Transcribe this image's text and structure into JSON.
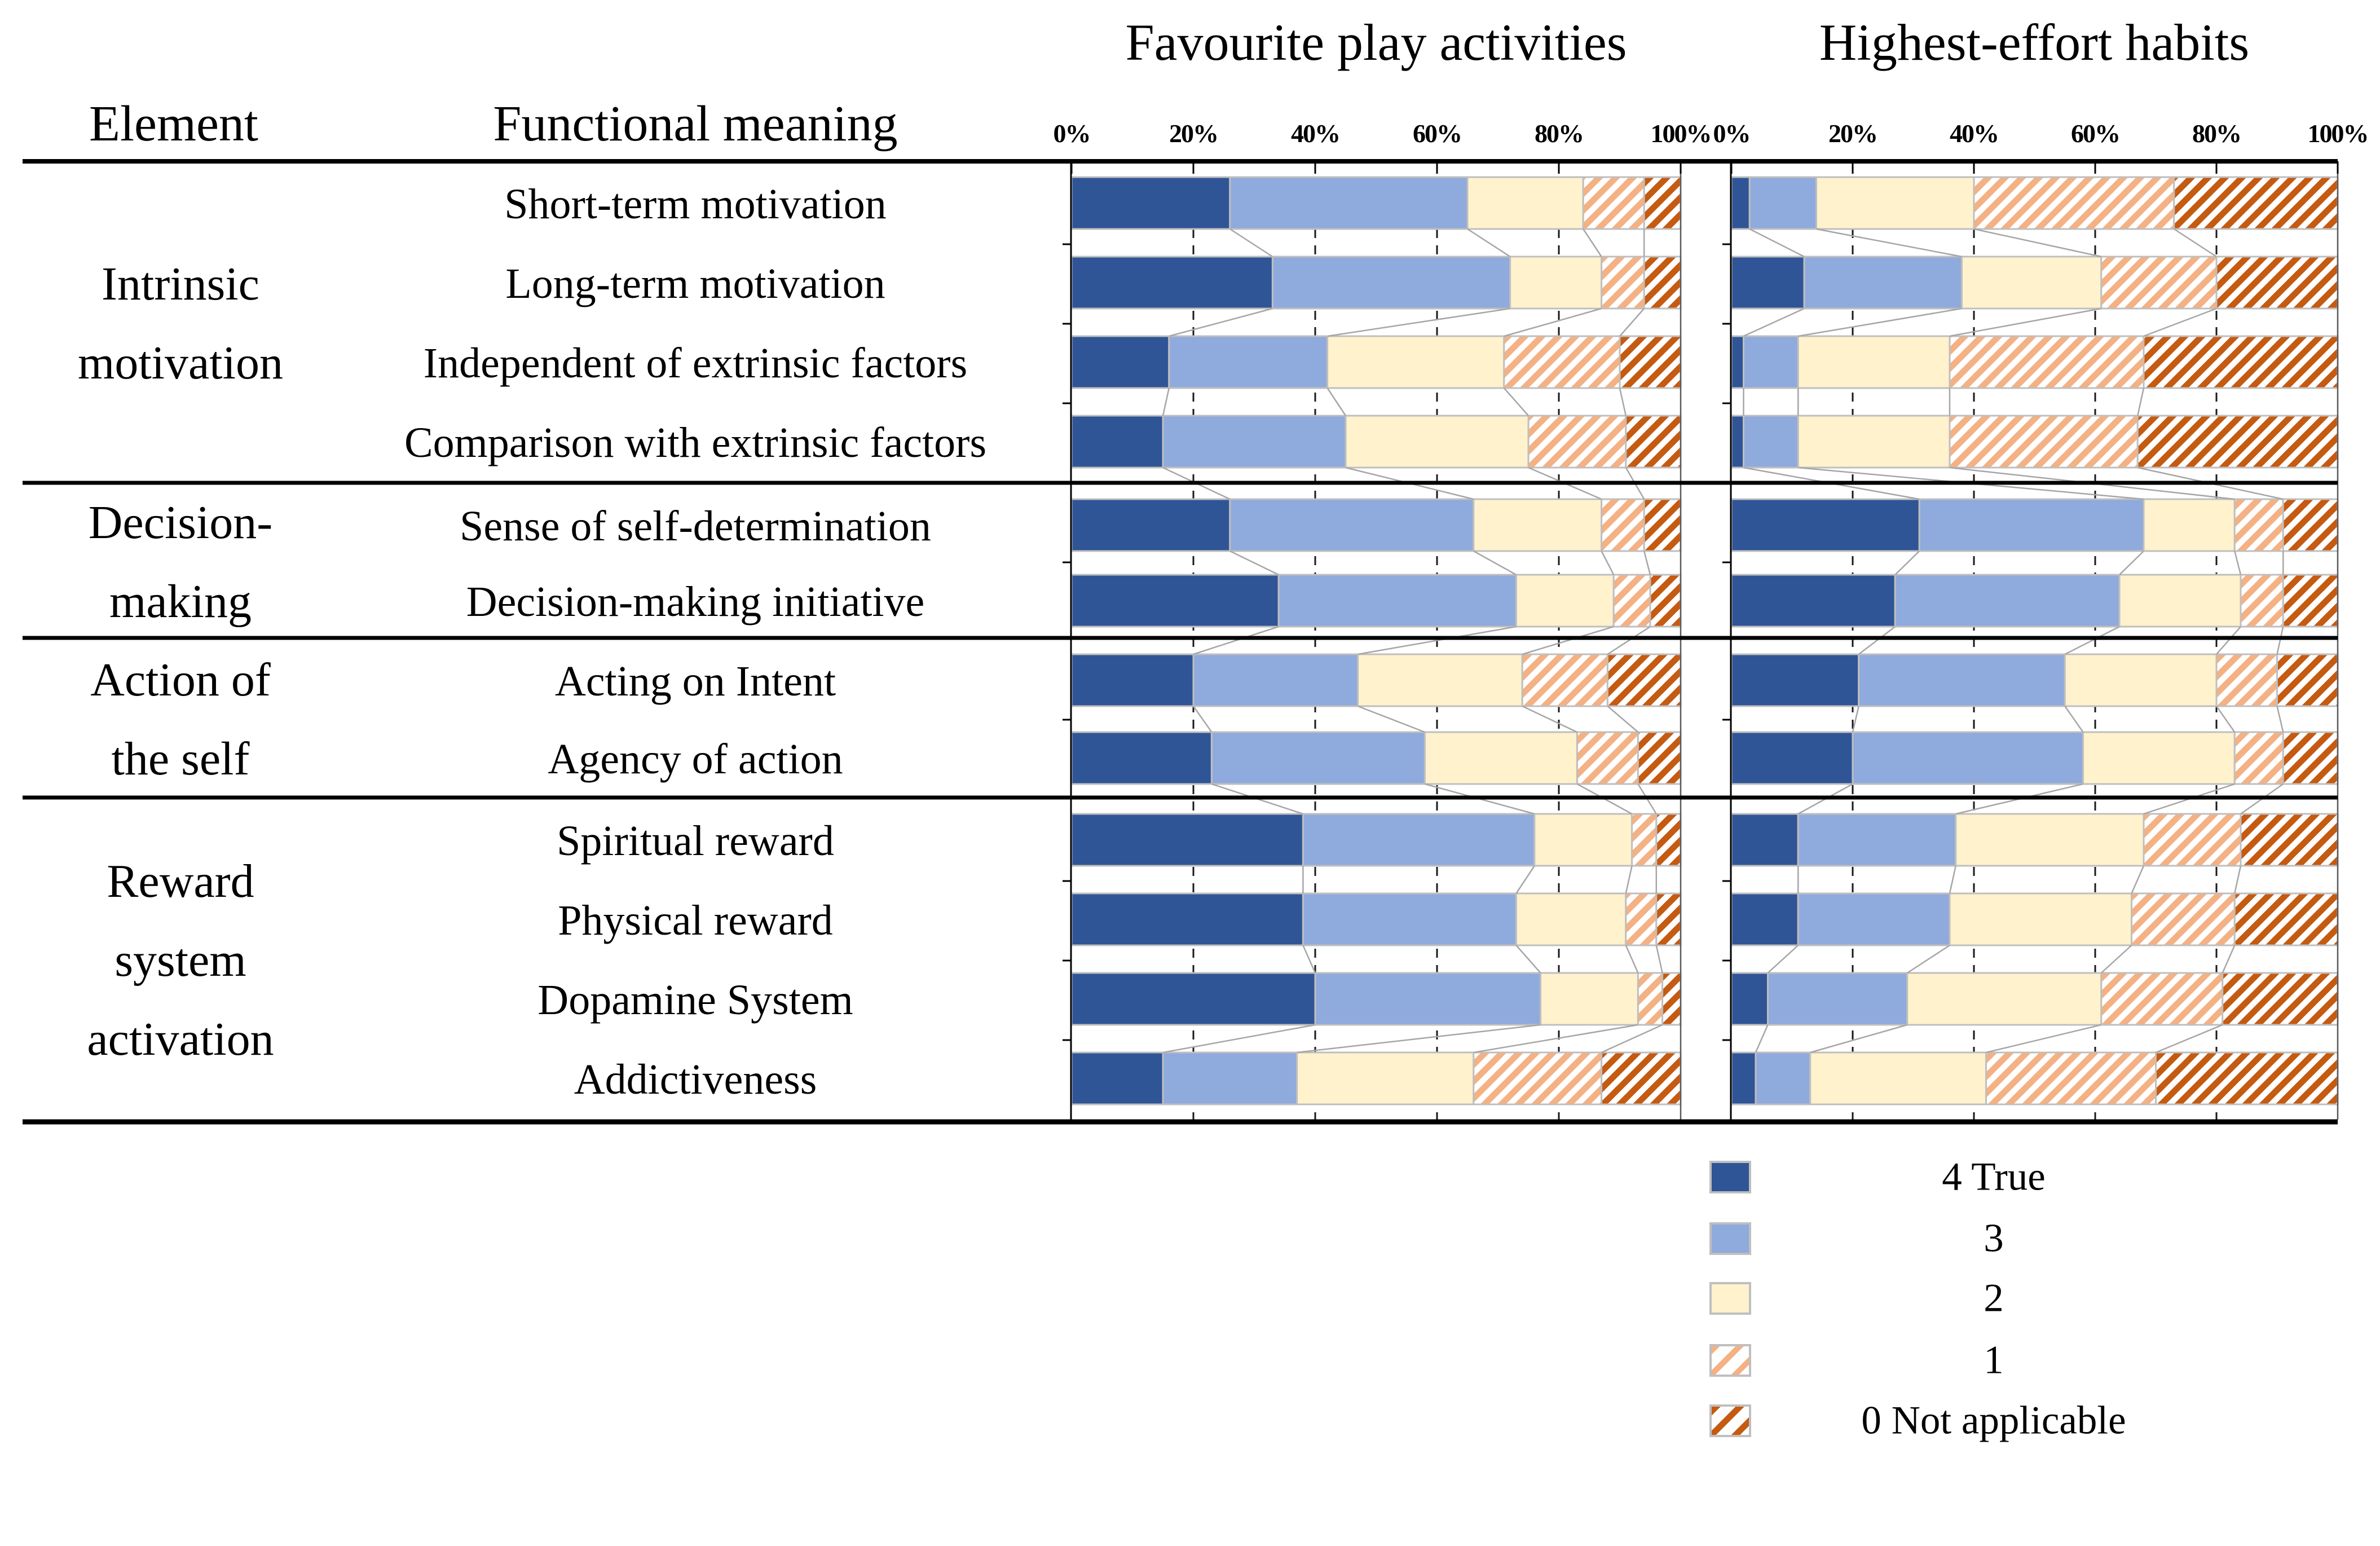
{
  "figure": {
    "element_header": "Element",
    "meaning_header": "Functional meaning"
  },
  "legend": {
    "items": [
      {
        "label": "4 True",
        "key": "s4"
      },
      {
        "label": "3",
        "key": "s3"
      },
      {
        "label": "2",
        "key": "s2"
      },
      {
        "label": "1",
        "key": "s1"
      },
      {
        "label": "0 Not applicable",
        "key": "s0"
      }
    ]
  },
  "groups": [
    {
      "lines": [
        "Intrinsic",
        "motivation"
      ],
      "row_count": 4
    },
    {
      "lines": [
        "Decision-",
        "making"
      ],
      "row_count": 2
    },
    {
      "lines": [
        "Action of",
        "the self"
      ],
      "row_count": 2
    },
    {
      "lines": [
        "Reward",
        "system",
        "activation"
      ],
      "row_count": 4
    }
  ],
  "colors": {
    "s4": "#2F5597",
    "s3": "#8FAADC",
    "s2": "#FFF2CC",
    "s1_stripe": "#F4B183",
    "s0_stripe": "#C55A11",
    "bar_border": "#BFBFBF",
    "connector": "#A6A6A6",
    "rule": "#000000"
  },
  "chart_data": {
    "type": "bar",
    "stacked": true,
    "orientation": "horizontal",
    "unit": "percent",
    "axis_ticks": [
      "0%",
      "20%",
      "40%",
      "60%",
      "80%",
      "100%"
    ],
    "axis_range": [
      0,
      100
    ],
    "grid": "dashed-vertical",
    "legend_position": "bottom-right",
    "legend_labels": [
      "4 True",
      "3",
      "2",
      "1",
      "0 Not applicable"
    ],
    "categories": [
      "Short-term motivation",
      "Long-term motivation",
      "Independent of extrinsic factors",
      "Comparison with extrinsic factors",
      "Sense of self-determination",
      "Decision-making initiative",
      "Acting on Intent",
      "Agency of action",
      "Spiritual reward",
      "Physical reward",
      "Dopamine System",
      "Addictiveness"
    ],
    "category_groups": [
      "Intrinsic motivation",
      "Intrinsic motivation",
      "Intrinsic motivation",
      "Intrinsic motivation",
      "Decision-making",
      "Decision-making",
      "Action of the self",
      "Action of the self",
      "Reward system activation",
      "Reward system activation",
      "Reward system activation",
      "Reward system activation"
    ],
    "charts": [
      {
        "title": "Favourite play activities",
        "series": [
          {
            "name": "4 True",
            "values": [
              26,
              33,
              16,
              15,
              26,
              34,
              20,
              23,
              38,
              38,
              40,
              15
            ]
          },
          {
            "name": "3",
            "values": [
              39,
              39,
              26,
              30,
              40,
              39,
              27,
              35,
              38,
              35,
              37,
              22
            ]
          },
          {
            "name": "2",
            "values": [
              19,
              15,
              29,
              30,
              21,
              16,
              27,
              25,
              16,
              18,
              16,
              29
            ]
          },
          {
            "name": "1",
            "values": [
              10,
              7,
              19,
              16,
              7,
              6,
              14,
              10,
              4,
              5,
              4,
              21
            ]
          },
          {
            "name": "0 Not applicable",
            "values": [
              6,
              6,
              10,
              9,
              6,
              5,
              12,
              7,
              4,
              4,
              3,
              13
            ]
          }
        ]
      },
      {
        "title": "Highest-effort habits",
        "series": [
          {
            "name": "4 True",
            "values": [
              3,
              12,
              2,
              2,
              31,
              27,
              21,
              20,
              11,
              11,
              6,
              4
            ]
          },
          {
            "name": "3",
            "values": [
              11,
              26,
              9,
              9,
              37,
              37,
              34,
              38,
              26,
              25,
              23,
              9
            ]
          },
          {
            "name": "2",
            "values": [
              26,
              23,
              25,
              25,
              15,
              20,
              25,
              25,
              31,
              30,
              32,
              29
            ]
          },
          {
            "name": "1",
            "values": [
              33,
              19,
              32,
              31,
              8,
              7,
              10,
              8,
              16,
              17,
              20,
              28
            ]
          },
          {
            "name": "0 Not applicable",
            "values": [
              27,
              20,
              32,
              33,
              9,
              9,
              10,
              9,
              16,
              17,
              19,
              30
            ]
          }
        ]
      }
    ]
  }
}
